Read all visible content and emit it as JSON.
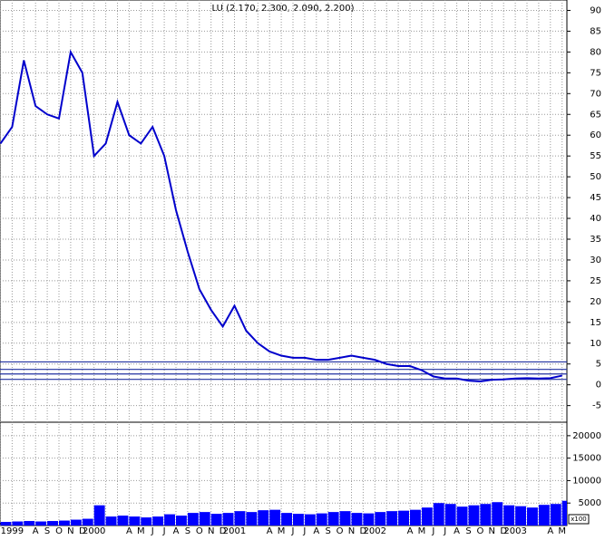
{
  "chart_data": [
    {
      "type": "line",
      "title": "LU (2.170, 2.300, 2.090, 2.200)",
      "categories": [
        null,
        "1999",
        null,
        "A",
        "S",
        "O",
        "N",
        "D",
        "2000",
        null,
        null,
        "A",
        "M",
        "J",
        "J",
        "A",
        "S",
        "O",
        "N",
        "D",
        "2001",
        null,
        null,
        "A",
        "M",
        "J",
        "J",
        "A",
        "S",
        "O",
        "N",
        "D",
        "2002",
        null,
        null,
        "A",
        "M",
        "J",
        "J",
        "A",
        "S",
        "O",
        "N",
        "D",
        "2003",
        null,
        null,
        "A",
        "M"
      ],
      "values": [
        58,
        62,
        78,
        67,
        65,
        64,
        80,
        75,
        55,
        58,
        68,
        60,
        58,
        62,
        55,
        42,
        32,
        23,
        18,
        14,
        19,
        13,
        10,
        8,
        7,
        6.5,
        6.5,
        6,
        6,
        6.5,
        7,
        6.5,
        6,
        5,
        4.5,
        4.5,
        3.5,
        2,
        1.5,
        1.5,
        1,
        0.8,
        1.2,
        1.3,
        1.5,
        1.6,
        1.5,
        1.6,
        2.2
      ],
      "color": "#0000cc",
      "ylim": [
        -9,
        92.5
      ],
      "yticks": [
        -5,
        0,
        5,
        10,
        15,
        20,
        25,
        30,
        35,
        40,
        45,
        50,
        55,
        60,
        65,
        70,
        75,
        80,
        85,
        90
      ],
      "hlines": [
        5.5,
        3.7,
        2.6,
        1.3
      ],
      "hline_color": "#2030a0",
      "grid": true
    },
    {
      "type": "bar",
      "values": [
        800,
        900,
        1000,
        900,
        1000,
        1100,
        1300,
        1500,
        4500,
        2000,
        2200,
        2000,
        1800,
        2000,
        2500,
        2200,
        2800,
        3000,
        2600,
        2800,
        3200,
        3000,
        3400,
        3500,
        2800,
        2600,
        2500,
        2700,
        3000,
        3200,
        2800,
        2700,
        3000,
        3200,
        3300,
        3500,
        4000,
        5000,
        4800,
        4200,
        4500,
        4800,
        5200,
        4500,
        4300,
        4000,
        4600,
        4800,
        5500
      ],
      "color": "#0000ff",
      "ylim": [
        0,
        23000
      ],
      "yticks": [
        5000,
        10000,
        15000,
        20000
      ],
      "unit_label": "x100",
      "grid": true
    }
  ]
}
